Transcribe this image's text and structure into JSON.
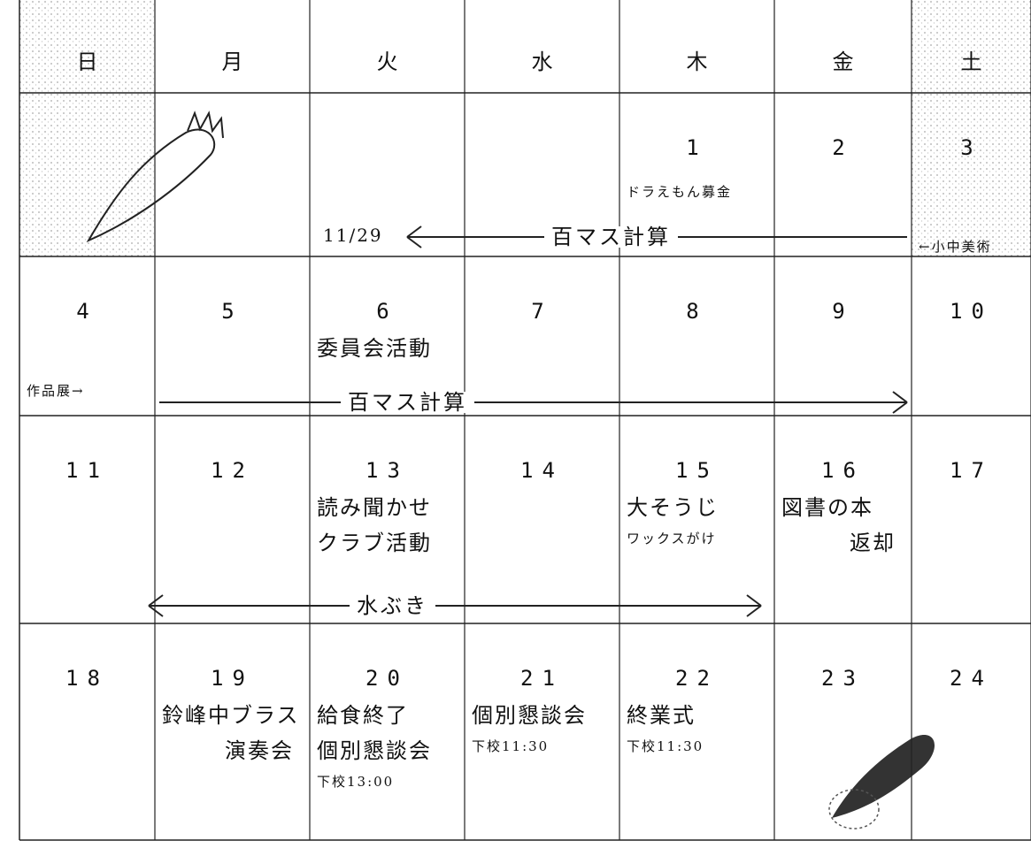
{
  "header": {
    "weekdays": [
      "日",
      "月",
      "火",
      "水",
      "木",
      "金",
      "土"
    ]
  },
  "weeks": [
    {
      "days": [
        null,
        null,
        null,
        null,
        {
          "date": "1",
          "events": [
            "ドラえもん募金"
          ]
        },
        {
          "date": "2",
          "events": []
        },
        {
          "date": "3",
          "events": [
            "←小中美術"
          ]
        }
      ],
      "span": {
        "note": "11/29",
        "label": "百マス計算"
      }
    },
    {
      "days": [
        {
          "date": "4",
          "events": [
            "作品展→"
          ]
        },
        {
          "date": "5",
          "events": []
        },
        {
          "date": "6",
          "events": [
            "委員会活動"
          ]
        },
        {
          "date": "7",
          "events": []
        },
        {
          "date": "8",
          "events": []
        },
        {
          "date": "9",
          "events": []
        },
        {
          "date": "10",
          "events": []
        }
      ],
      "span": {
        "label": "百マス計算"
      }
    },
    {
      "days": [
        {
          "date": "11",
          "events": []
        },
        {
          "date": "12",
          "events": []
        },
        {
          "date": "13",
          "events": [
            "読み聞かせ",
            "クラブ活動"
          ]
        },
        {
          "date": "14",
          "events": []
        },
        {
          "date": "15",
          "events": [
            "大そうじ",
            "ワックスがけ"
          ]
        },
        {
          "date": "16",
          "events": [
            "図書の本",
            "返却"
          ]
        },
        {
          "date": "17",
          "events": []
        }
      ],
      "span": {
        "label": "水ぶき"
      }
    },
    {
      "days": [
        {
          "date": "18",
          "events": []
        },
        {
          "date": "19",
          "events": [
            "鈴峰中ブラス",
            "演奏会"
          ]
        },
        {
          "date": "20",
          "events": [
            "給食終了",
            "個別懇談会",
            "下校13:00"
          ]
        },
        {
          "date": "21",
          "events": [
            "個別懇談会",
            "下校11:30"
          ]
        },
        {
          "date": "22",
          "events": [
            "終業式",
            "下校11:30"
          ]
        },
        {
          "date": "23",
          "events": []
        },
        {
          "date": "24",
          "events": []
        }
      ]
    }
  ]
}
